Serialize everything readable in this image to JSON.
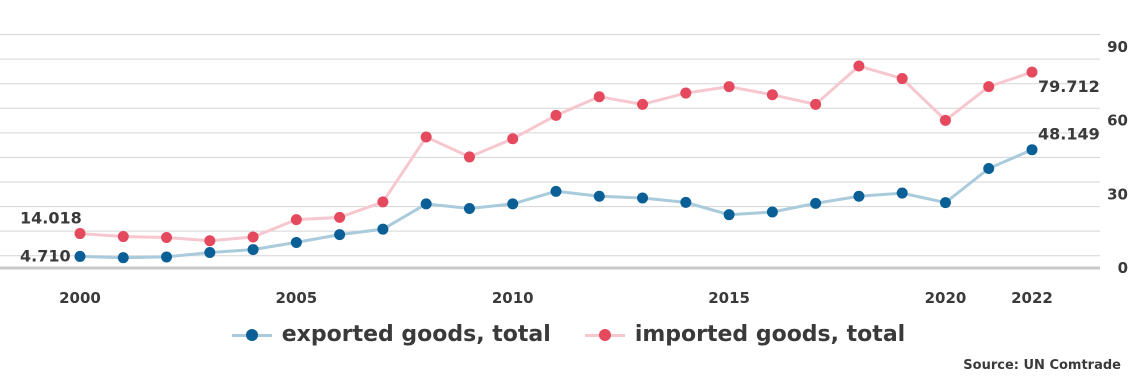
{
  "chart_data": {
    "type": "line",
    "source": "Source: UN Comtrade",
    "x": [
      2000,
      2001,
      2002,
      2003,
      2004,
      2005,
      2006,
      2007,
      2008,
      2009,
      2010,
      2011,
      2012,
      2013,
      2014,
      2015,
      2016,
      2017,
      2018,
      2019,
      2020,
      2021,
      2022
    ],
    "x_tick_labels": [
      "2000",
      "2005",
      "2010",
      "2015",
      "2020",
      "2022"
    ],
    "x_tick_values": [
      2000,
      2005,
      2010,
      2015,
      2020,
      2022
    ],
    "y_tick_labels": [
      "0",
      "30",
      "60",
      "90"
    ],
    "y_tick_values": [
      0,
      30,
      60,
      90
    ],
    "ylim": [
      0,
      105
    ],
    "grid": true,
    "legend_position": "bottom-center",
    "series": [
      {
        "name": "exported goods, total",
        "color": "#0a5f96",
        "line_color": "#a9cbdc",
        "values": [
          4.71,
          4.2,
          4.5,
          6.3,
          7.5,
          10.4,
          13.6,
          15.8,
          26.1,
          24.2,
          26.1,
          31.2,
          29.2,
          28.5,
          26.7,
          21.7,
          22.8,
          26.3,
          29.2,
          30.5,
          26.6,
          40.5,
          48.149
        ],
        "first_label": "4.710",
        "last_label": "48.149"
      },
      {
        "name": "imported goods, total",
        "color": "#e5495e",
        "line_color": "#f6c7cf",
        "values": [
          14.018,
          12.8,
          12.4,
          11.1,
          12.6,
          19.7,
          20.6,
          26.9,
          53.3,
          45.2,
          52.6,
          62.1,
          69.7,
          66.6,
          71.2,
          73.8,
          70.5,
          66.6,
          82.2,
          77.1,
          60.1,
          73.8,
          79.712
        ],
        "first_label": "14.018",
        "last_label": "79.712"
      }
    ]
  }
}
